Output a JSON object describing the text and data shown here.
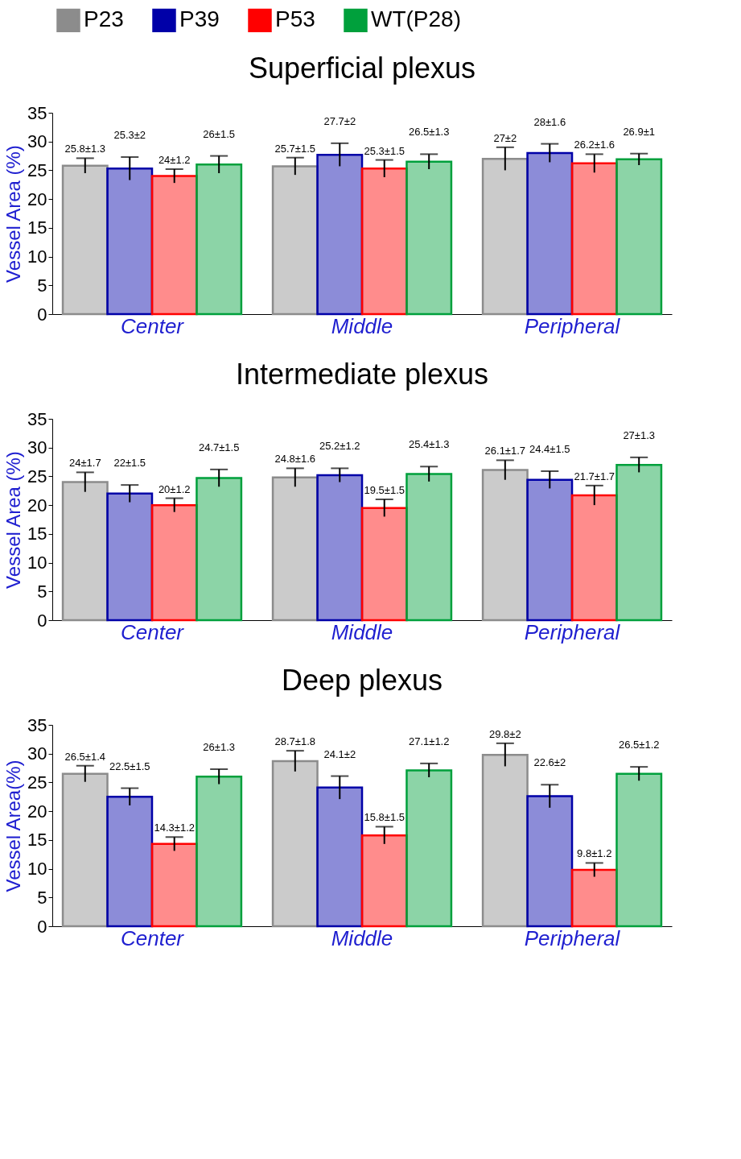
{
  "chart_data": [
    {
      "type": "bar",
      "title": "Superficial plexus",
      "ylabel": "Vessel Area (%)",
      "categories": [
        "Center",
        "Middle",
        "Peripheral"
      ],
      "ylim": [
        0,
        35
      ],
      "yticks": [
        0,
        5,
        10,
        15,
        20,
        25,
        30,
        35
      ],
      "grid": false,
      "legend": "top",
      "series": [
        {
          "name": "P23",
          "color": "#8c8c8c",
          "values": [
            25.8,
            25.7,
            27
          ],
          "errors": [
            1.3,
            1.5,
            2
          ],
          "value_labels": [
            "25.8±1.3",
            "25.7±1.5",
            "27±2"
          ]
        },
        {
          "name": "P39",
          "color": "#0000a8",
          "values": [
            25.3,
            27.7,
            28
          ],
          "errors": [
            2,
            2,
            1.6
          ],
          "value_labels": [
            "25.3±2",
            "27.7±2",
            "28±1.6"
          ]
        },
        {
          "name": "P53",
          "color": "#ff0000",
          "values": [
            24,
            25.3,
            26.2
          ],
          "errors": [
            1.2,
            1.5,
            1.6
          ],
          "value_labels": [
            "24±1.2",
            "25.3±1.5",
            "26.2±1.6"
          ]
        },
        {
          "name": "WT(P28)",
          "color": "#00a03c",
          "values": [
            26,
            26.5,
            26.9
          ],
          "errors": [
            1.5,
            1.3,
            1
          ],
          "value_labels": [
            "26±1.5",
            "26.5±1.3",
            "26.9±1"
          ]
        }
      ]
    },
    {
      "type": "bar",
      "title": "Intermediate plexus",
      "ylabel": "Vessel Area (%)",
      "categories": [
        "Center",
        "Middle",
        "Peripheral"
      ],
      "ylim": [
        0,
        35
      ],
      "yticks": [
        0,
        5,
        10,
        15,
        20,
        25,
        30,
        35
      ],
      "grid": false,
      "series": [
        {
          "name": "P23",
          "color": "#8c8c8c",
          "values": [
            24,
            24.8,
            26.1
          ],
          "errors": [
            1.7,
            1.6,
            1.7
          ],
          "value_labels": [
            "24±1.7",
            "24.8±1.6",
            "26.1±1.7"
          ]
        },
        {
          "name": "P39",
          "color": "#0000a8",
          "values": [
            22,
            25.2,
            24.4
          ],
          "errors": [
            1.5,
            1.2,
            1.5
          ],
          "value_labels": [
            "22±1.5",
            "25.2±1.2",
            "24.4±1.5"
          ]
        },
        {
          "name": "P53",
          "color": "#ff0000",
          "values": [
            20,
            19.5,
            21.7
          ],
          "errors": [
            1.2,
            1.5,
            1.7
          ],
          "value_labels": [
            "20±1.2",
            "19.5±1.5",
            "21.7±1.7"
          ]
        },
        {
          "name": "WT(P28)",
          "color": "#00a03c",
          "values": [
            24.7,
            25.4,
            27
          ],
          "errors": [
            1.5,
            1.3,
            1.3
          ],
          "value_labels": [
            "24.7±1.5",
            "25.4±1.3",
            "27±1.3"
          ]
        }
      ]
    },
    {
      "type": "bar",
      "title": "Deep plexus",
      "ylabel": "Vessel Area(%)",
      "categories": [
        "Center",
        "Middle",
        "Peripheral"
      ],
      "ylim": [
        0,
        35
      ],
      "yticks": [
        0,
        5,
        10,
        15,
        20,
        25,
        30,
        35
      ],
      "grid": false,
      "series": [
        {
          "name": "P23",
          "color": "#8c8c8c",
          "values": [
            26.5,
            28.7,
            29.8
          ],
          "errors": [
            1.4,
            1.8,
            2
          ],
          "value_labels": [
            "26.5±1.4",
            "28.7±1.8",
            "29.8±2"
          ]
        },
        {
          "name": "P39",
          "color": "#0000a8",
          "values": [
            22.5,
            24.1,
            22.6
          ],
          "errors": [
            1.5,
            2,
            2
          ],
          "value_labels": [
            "22.5±1.5",
            "24.1±2",
            "22.6±2"
          ]
        },
        {
          "name": "P53",
          "color": "#ff0000",
          "values": [
            14.3,
            15.8,
            9.8
          ],
          "errors": [
            1.2,
            1.5,
            1.2
          ],
          "value_labels": [
            "14.3±1.2",
            "15.8±1.5",
            "9.8±1.2"
          ]
        },
        {
          "name": "WT(P28)",
          "color": "#00a03c",
          "values": [
            26,
            27.1,
            26.5
          ],
          "errors": [
            1.3,
            1.2,
            1.2
          ],
          "value_labels": [
            "26±1.3",
            "27.1±1.2",
            "26.5±1.2"
          ]
        }
      ]
    }
  ]
}
